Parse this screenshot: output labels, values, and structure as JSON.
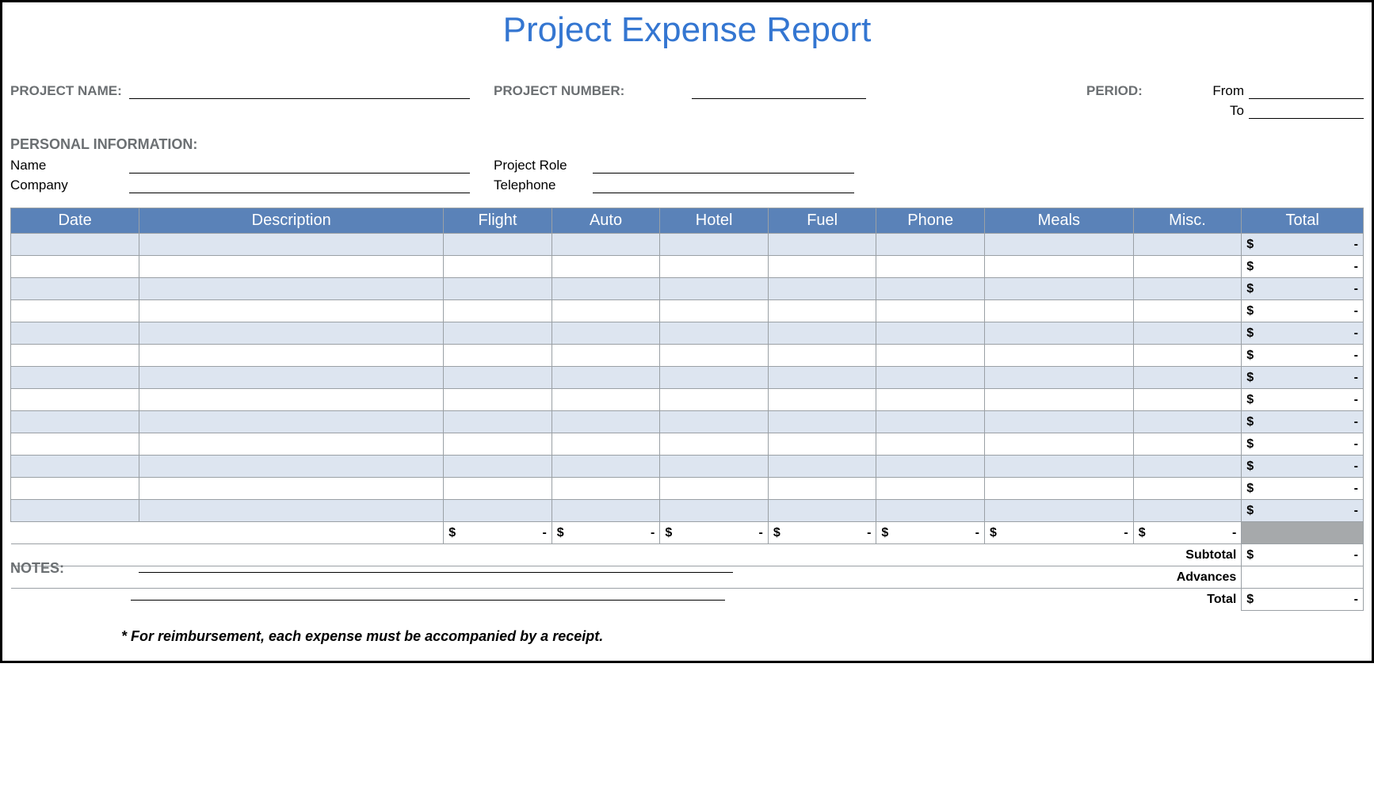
{
  "title": "Project Expense Report",
  "header": {
    "project_name_label": "PROJECT NAME:",
    "project_number_label": "PROJECT NUMBER:",
    "period_label": "PERIOD:",
    "from_label": "From",
    "to_label": "To",
    "personal_info_label": "PERSONAL INFORMATION:",
    "name_label": "Name",
    "company_label": "Company",
    "project_role_label": "Project Role",
    "telephone_label": "Telephone"
  },
  "table": {
    "columns": [
      "Date",
      "Description",
      "Flight",
      "Auto",
      "Hotel",
      "Fuel",
      "Phone",
      "Meals",
      "Misc.",
      "Total"
    ],
    "col_widths_pct": [
      9.5,
      22.5,
      8,
      8,
      8,
      8,
      8,
      11,
      8,
      9
    ],
    "row_count": 13,
    "row_alt_color": "#dde5f0",
    "row_plain_color": "#ffffff",
    "header_bg": "#5a82b8",
    "header_fg": "#ffffff",
    "border_color": "#9aa0a5",
    "currency_symbol": "$",
    "empty_value": "-",
    "column_sum_cols": [
      "Flight",
      "Auto",
      "Hotel",
      "Fuel",
      "Phone",
      "Meals",
      "Misc."
    ],
    "subtotal_label": "Subtotal",
    "advances_label": "Advances",
    "total_label": "Total"
  },
  "notes_label": "NOTES:",
  "footer_note": "* For reimbursement, each expense must be accompanied by a receipt."
}
